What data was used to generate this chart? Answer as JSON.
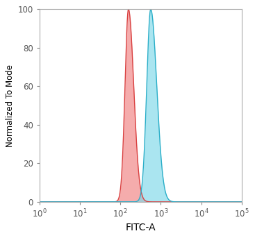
{
  "xlabel": "FITC-A",
  "ylabel": "Normalized To Mode",
  "ylim": [
    0,
    100
  ],
  "yticks": [
    0,
    20,
    40,
    60,
    80,
    100
  ],
  "red_peak_log_mean": 2.2,
  "red_peak_log_std": 0.1,
  "red_peak_log_skew": 0.4,
  "blue_peak_log_mean": 2.75,
  "blue_peak_log_std": 0.115,
  "blue_peak_log_skew": 0.5,
  "red_fill_color": "#f08080",
  "red_line_color": "#d94040",
  "blue_fill_color": "#7dd8e8",
  "blue_line_color": "#2aaec8",
  "fill_alpha": 0.65,
  "line_width": 1.0,
  "background_color": "#ffffff",
  "figure_bg": "#ffffff",
  "spine_color": "#aaaaaa",
  "tick_color": "#888888"
}
